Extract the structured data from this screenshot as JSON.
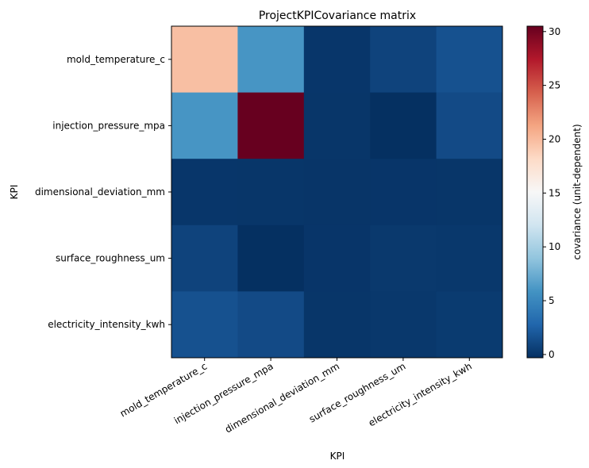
{
  "chart_data": {
    "type": "heatmap",
    "title": "ProjectKPICovariance matrix",
    "xlabel": "KPI",
    "ylabel": "KPI",
    "x_categories": [
      "mold_temperature_c",
      "injection_pressure_mpa",
      "dimensional_deviation_mm",
      "surface_roughness_um",
      "electricity_intensity_kwh"
    ],
    "y_categories": [
      "mold_temperature_c",
      "injection_pressure_mpa",
      "dimensional_deviation_mm",
      "surface_roughness_um",
      "electricity_intensity_kwh"
    ],
    "values": [
      [
        19.8,
        6.0,
        0.05,
        0.8,
        1.6
      ],
      [
        6.0,
        30.5,
        0.03,
        -0.3,
        1.2
      ],
      [
        0.05,
        0.03,
        0.002,
        0.01,
        0.02
      ],
      [
        0.8,
        -0.3,
        0.01,
        0.2,
        0.15
      ],
      [
        1.6,
        1.2,
        0.02,
        0.15,
        0.3
      ]
    ],
    "colorbar": {
      "label": "covariance (unit-dependent)",
      "min": -0.3,
      "max": 30.5,
      "ticks": [
        0,
        5,
        10,
        15,
        20,
        25,
        30
      ],
      "colormap": "RdBu_r"
    }
  }
}
